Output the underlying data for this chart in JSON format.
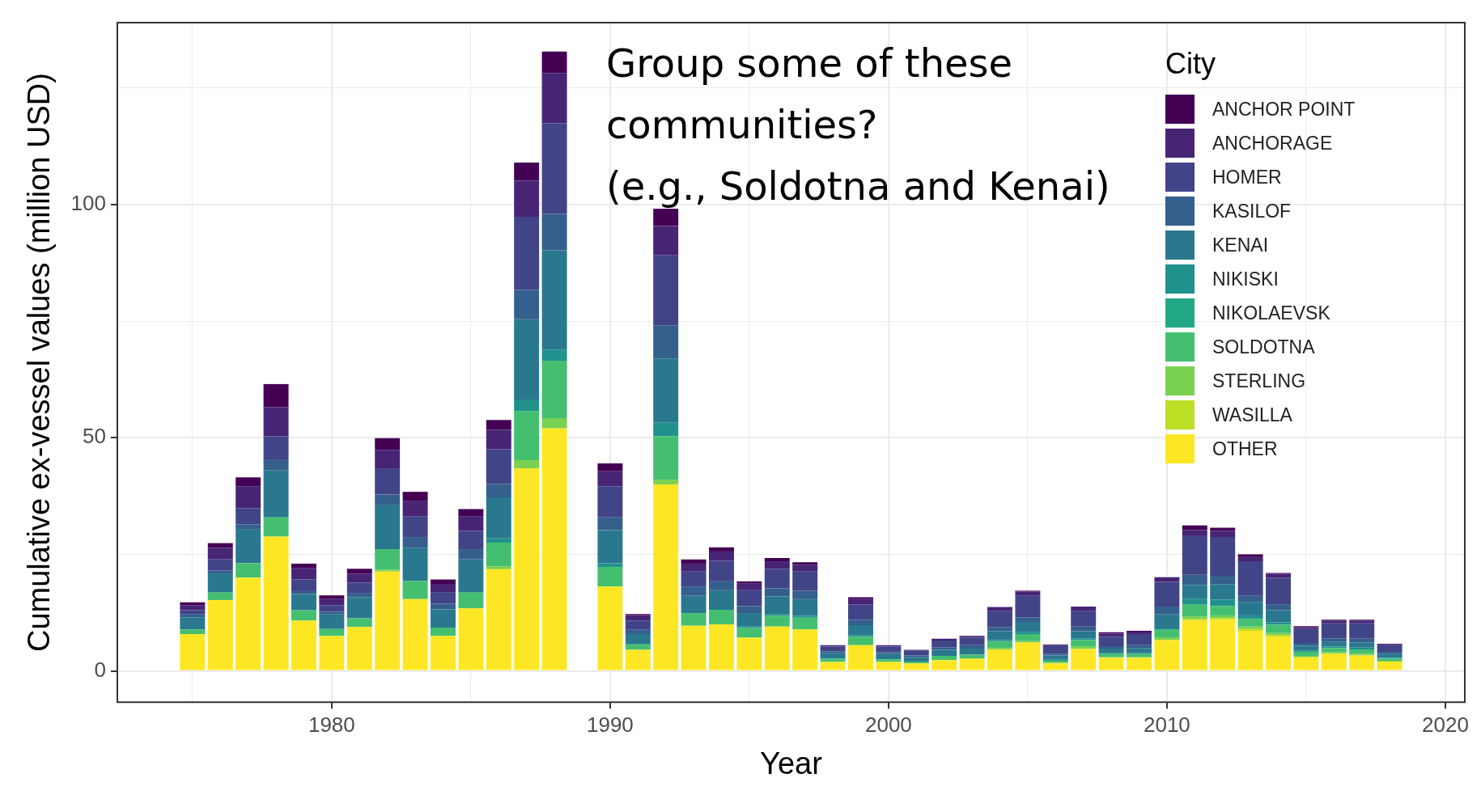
{
  "chart_data": {
    "type": "bar",
    "stacked": true,
    "xlabel": "Year",
    "ylabel": "Cumulative ex-vessel values (million USD)",
    "legend_title": "City",
    "annotations": [
      "Group some of these\ncommunities?\n(e.g., Soldotna and Kenai)"
    ],
    "x": [
      1975,
      1976,
      1977,
      1978,
      1979,
      1980,
      1981,
      1982,
      1983,
      1984,
      1985,
      1986,
      1987,
      1988,
      1989,
      1990,
      1991,
      1992,
      1993,
      1994,
      1995,
      1996,
      1997,
      1998,
      1999,
      2000,
      2001,
      2002,
      2003,
      2004,
      2005,
      2006,
      2007,
      2008,
      2009,
      2010,
      2011,
      2012,
      2013,
      2014,
      2015,
      2016,
      2017,
      2018
    ],
    "xlim": [
      1972.3,
      2020.7
    ],
    "xticks": [
      {
        "value": 1975,
        "label": null
      },
      1980,
      {
        "value": 1985,
        "label": null
      },
      1990,
      {
        "value": 1995,
        "label": null
      },
      2000,
      {
        "value": 2005,
        "label": null
      },
      2010,
      {
        "value": 2015,
        "label": null
      },
      2020
    ],
    "ylim": [
      -6.7,
      139
    ],
    "yticks": [
      0,
      {
        "value": 25,
        "label": null
      },
      50,
      {
        "value": 75,
        "label": null
      },
      100,
      {
        "value": 125,
        "label": null
      }
    ],
    "grid": true,
    "legend": "top right",
    "series": [
      {
        "name": "OTHER",
        "color": "#fde725",
        "values": [
          7.9,
          15.2,
          20.0,
          28.8,
          10.8,
          7.5,
          9.4,
          21.3,
          15.4,
          7.5,
          13.4,
          21.8,
          43.4,
          52.0,
          0,
          18.1,
          4.5,
          40.0,
          9.7,
          10.0,
          7.1,
          9.5,
          8.9,
          1.9,
          5.5,
          1.9,
          1.6,
          2.3,
          2.6,
          4.6,
          6.1,
          1.6,
          4.7,
          2.8,
          2.8,
          6.6,
          10.8,
          11.0,
          8.6,
          7.4,
          2.9,
          3.7,
          3.3,
          2.0
        ]
      },
      {
        "name": "WASILLA",
        "color": "#bddf26",
        "values": [
          0,
          0,
          0,
          0,
          0,
          0,
          0,
          0,
          0,
          0,
          0,
          0,
          0,
          0,
          0,
          0,
          0,
          0,
          0,
          0,
          0,
          0,
          0,
          0,
          0,
          0,
          0,
          0,
          0,
          0,
          0,
          0,
          0,
          0,
          0,
          0,
          0.3,
          0.3,
          0.4,
          0.3,
          0,
          0,
          0,
          0
        ]
      },
      {
        "name": "STERLING",
        "color": "#7ad151",
        "values": [
          0,
          0,
          0,
          0,
          0,
          0,
          0,
          0.4,
          0,
          0,
          0,
          0.6,
          1.8,
          2.2,
          0,
          0,
          0,
          1.0,
          0,
          0,
          0,
          0,
          0,
          0,
          0,
          0,
          0,
          0,
          0,
          0.3,
          0.3,
          0.2,
          0.6,
          0.2,
          0.2,
          0.6,
          0.6,
          0.6,
          0.5,
          0.4,
          0.3,
          0.3,
          0.4,
          0.2
        ]
      },
      {
        "name": "SOLDOTNA",
        "color": "#44bf70",
        "values": [
          1.0,
          1.6,
          3.1,
          4.1,
          2.2,
          1.5,
          1.9,
          4.4,
          3.9,
          1.8,
          3.4,
          5.1,
          10.5,
          12.3,
          0,
          4.2,
          1.2,
          9.3,
          2.7,
          3.1,
          2.1,
          2.3,
          2.5,
          0.7,
          1.8,
          0.6,
          0.4,
          0.9,
          0.9,
          1.4,
          1.5,
          0.4,
          1.3,
          0.6,
          0.6,
          1.6,
          2.5,
          2.0,
          1.6,
          1.8,
          0.9,
          0.9,
          0.9,
          0.4
        ]
      },
      {
        "name": "NIKOLAEVSK",
        "color": "#22a884",
        "values": [
          0,
          0,
          0,
          0,
          0,
          0,
          0,
          0,
          0,
          0,
          0,
          0,
          0,
          0,
          0,
          0,
          0,
          0,
          0,
          0,
          0,
          0,
          0,
          0,
          0,
          0,
          0,
          0,
          0,
          0,
          0,
          0,
          0,
          0,
          0,
          0,
          0,
          0,
          0,
          0,
          0,
          0,
          0,
          0
        ]
      },
      {
        "name": "NIKISKI",
        "color": "#21918c",
        "values": [
          0,
          0,
          0,
          0,
          0,
          0,
          0,
          0,
          0,
          0,
          0,
          0.9,
          2.5,
          2.4,
          0,
          0.8,
          0,
          2.9,
          0,
          0,
          0.3,
          0.3,
          0.4,
          0,
          0.3,
          0,
          0,
          0,
          0,
          0.3,
          0.4,
          0.2,
          0.4,
          0.2,
          0.2,
          0.3,
          1.3,
          1.4,
          0.8,
          0.5,
          0.3,
          0.3,
          0.4,
          0.2
        ]
      },
      {
        "name": "KENAI",
        "color": "#2a788e",
        "values": [
          2.6,
          4.1,
          7.2,
          10.1,
          3.5,
          3.1,
          4.5,
          9.4,
          7.1,
          3.9,
          7.1,
          8.8,
          17.2,
          21.3,
          null,
          7.1,
          2.2,
          13.8,
          3.7,
          4.2,
          2.9,
          3.9,
          3.6,
          1.2,
          2.2,
          1.1,
          0.9,
          1.3,
          1.3,
          1.9,
          2.2,
          0.9,
          1.5,
          1.0,
          1.1,
          3.1,
          2.9,
          3.3,
          2.9,
          2.6,
          1.0,
          1.0,
          1.1,
          0.8
        ]
      },
      {
        "name": "KASILOF",
        "color": "#355f8d",
        "values": [
          0.6,
          0.6,
          1.1,
          2.2,
          0.6,
          0.6,
          0.8,
          2.3,
          2.3,
          1.2,
          2.2,
          2.9,
          6.3,
          7.8,
          0,
          2.7,
          0.9,
          7.1,
          2.0,
          1.9,
          1.5,
          1.7,
          1.8,
          0.4,
          1.2,
          0.4,
          0.4,
          0.6,
          0.7,
          0.9,
          1.0,
          0.4,
          1.0,
          0.5,
          0.6,
          1.6,
          2.2,
          1.8,
          1.3,
          1.3,
          0.6,
          0.8,
          0.8,
          0.5
        ]
      },
      {
        "name": "HOMER",
        "color": "#414487",
        "values": [
          0.9,
          2.5,
          3.5,
          5.1,
          2.5,
          1.4,
          2.3,
          5.5,
          4.4,
          2.5,
          3.9,
          7.4,
          15.7,
          19.4,
          0,
          6.7,
          2.0,
          15.0,
          3.2,
          4.4,
          3.4,
          4.2,
          4.1,
          1.0,
          3.2,
          1.2,
          1.0,
          1.4,
          1.6,
          3.4,
          4.6,
          1.8,
          3.3,
          2.0,
          2.4,
          5.3,
          8.3,
          8.3,
          7.4,
          5.7,
          3.0,
          3.2,
          3.3,
          1.4
        ]
      },
      {
        "name": "ANCHORAGE",
        "color": "#482475",
        "values": [
          1.1,
          2.4,
          4.7,
          6.3,
          2.5,
          1.3,
          1.9,
          4.1,
          3.4,
          1.6,
          3.2,
          4.2,
          7.7,
          10.8,
          0,
          3.2,
          1.2,
          6.3,
          1.7,
          2.0,
          1.4,
          1.6,
          1.4,
          0.3,
          1.2,
          0.3,
          0.2,
          0.4,
          0.4,
          0.9,
          0.9,
          0.2,
          1.0,
          0.7,
          0.5,
          1.0,
          1.3,
          1.3,
          0.9,
          0.8,
          0.4,
          0.6,
          0.6,
          0.3
        ]
      },
      {
        "name": "ANCHOR POINT",
        "color": "#440154",
        "values": [
          0.6,
          1.0,
          1.9,
          4.9,
          0.9,
          0.8,
          1.1,
          2.5,
          1.9,
          1.1,
          1.5,
          2.1,
          3.9,
          4.6,
          0,
          1.7,
          0.2,
          3.7,
          0.9,
          0.9,
          0.5,
          0.7,
          0.6,
          0,
          0.4,
          0,
          0,
          0,
          0,
          0,
          0.2,
          0,
          0,
          0.3,
          0.2,
          0,
          1.0,
          0.7,
          0.6,
          0.2,
          0.2,
          0.2,
          0.2,
          0
        ]
      }
    ]
  }
}
